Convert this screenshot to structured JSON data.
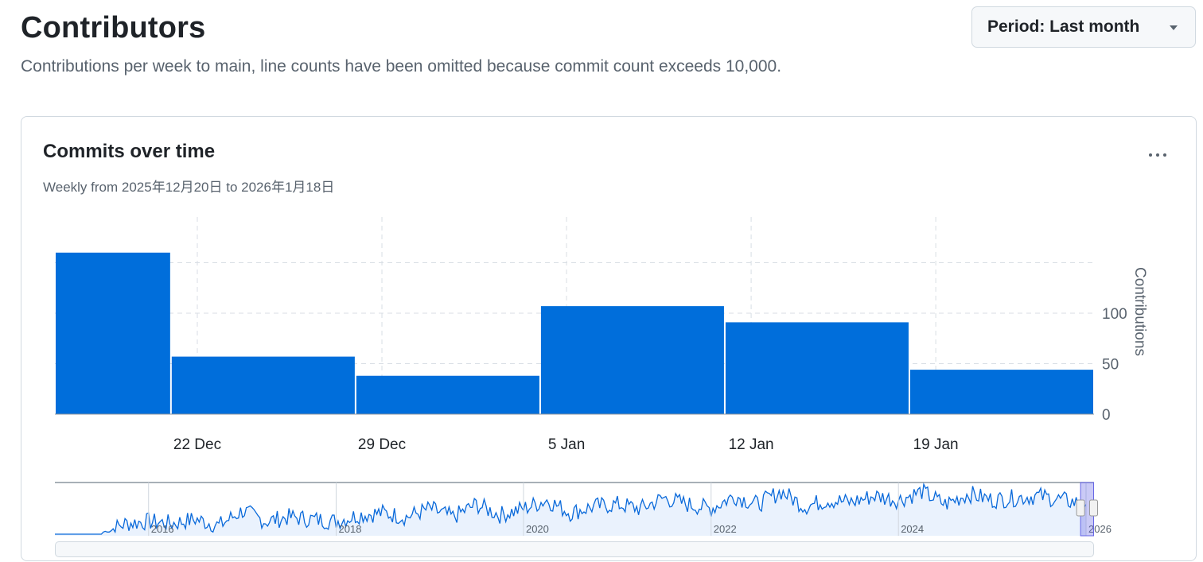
{
  "header": {
    "title": "Contributors",
    "subtitle": "Contributions per week to main, line counts have been omitted because commit count exceeds 10,000.",
    "period_label": "Period: Last month"
  },
  "card": {
    "title": "Commits over time",
    "subtitle": "Weekly from 2025年12月20日 to 2026年1月18日",
    "menu_icon": "kebab-horizontal-icon"
  },
  "colors": {
    "accent": "#0969da",
    "bar": "#006edb",
    "grid": "#d8dee4",
    "text_muted": "#59636e"
  },
  "chart_data": [
    {
      "type": "bar",
      "title": "Commits over time",
      "ylabel": "Contributions",
      "x": [
        "2025-12-14",
        "2025-12-21",
        "2025-12-28",
        "2026-01-04",
        "2026-01-11",
        "2026-01-18"
      ],
      "values": [
        160,
        57,
        38,
        107,
        91,
        44
      ],
      "x_ticks": [
        "22 Dec",
        "29 Dec",
        "5 Jan",
        "12 Jan",
        "19 Jan"
      ],
      "x_tick_dates": [
        "2025-12-22",
        "2025-12-29",
        "2026-01-05",
        "2026-01-12",
        "2026-01-19"
      ],
      "y_ticks": [
        0,
        50,
        100
      ],
      "ylim": [
        0,
        150
      ],
      "grid": true,
      "legend": "none"
    },
    {
      "type": "area",
      "role": "range navigator",
      "x_ticks": [
        "2016",
        "2018",
        "2020",
        "2022",
        "2024",
        "2026"
      ],
      "x_range": [
        "2015-01",
        "2026-01"
      ],
      "selected_range": [
        "2025-12-20",
        "2026-01-18"
      ],
      "x": [
        "2015-01",
        "2015-04",
        "2015-07",
        "2015-10",
        "2016-01",
        "2016-04",
        "2016-07",
        "2016-10",
        "2017-01",
        "2017-04",
        "2017-07",
        "2017-10",
        "2018-01",
        "2018-04",
        "2018-07",
        "2018-10",
        "2019-01",
        "2019-04",
        "2019-07",
        "2019-10",
        "2020-01",
        "2020-04",
        "2020-07",
        "2020-10",
        "2021-01",
        "2021-04",
        "2021-07",
        "2021-10",
        "2022-01",
        "2022-04",
        "2022-07",
        "2022-10",
        "2023-01",
        "2023-04",
        "2023-07",
        "2023-10",
        "2024-01",
        "2024-04",
        "2024-07",
        "2024-10",
        "2025-01",
        "2025-04",
        "2025-07",
        "2025-10",
        "2026-01"
      ],
      "values": [
        0,
        0,
        0,
        25,
        30,
        25,
        35,
        20,
        55,
        30,
        40,
        35,
        30,
        45,
        50,
        40,
        60,
        40,
        70,
        45,
        60,
        80,
        50,
        65,
        70,
        60,
        85,
        70,
        60,
        90,
        70,
        100,
        65,
        80,
        75,
        90,
        80,
        100,
        70,
        95,
        80,
        85,
        90,
        80,
        70
      ]
    }
  ]
}
